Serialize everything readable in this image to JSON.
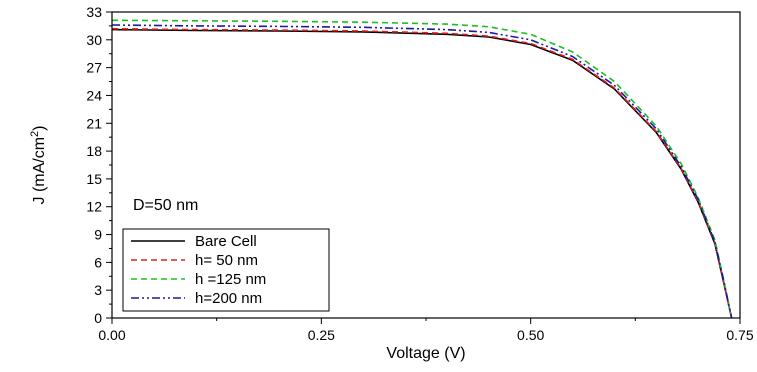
{
  "chart_data": {
    "type": "line",
    "title": "",
    "xlabel": "Voltage (V)",
    "ylabel_main": "J (mA/cm",
    "ylabel_sup": "2",
    "ylabel_close": ")",
    "xlim": [
      0.0,
      0.75
    ],
    "ylim": [
      0,
      33
    ],
    "x_ticks": [
      0.0,
      0.25,
      0.5,
      0.75
    ],
    "x_tick_labels": [
      "0.00",
      "0.25",
      "0.50",
      "0.75"
    ],
    "y_ticks": [
      0,
      3,
      6,
      9,
      12,
      15,
      18,
      21,
      24,
      27,
      30,
      33
    ],
    "y_tick_labels": [
      "0",
      "3",
      "6",
      "9",
      "12",
      "15",
      "18",
      "21",
      "24",
      "27",
      "30",
      "33"
    ],
    "grid": false,
    "legend_position": "bottom-left",
    "annotation": "D=50 nm",
    "series": [
      {
        "name": "Bare Cell",
        "color": "#000000",
        "dash": "solid",
        "x": [
          0.0,
          0.1,
          0.2,
          0.3,
          0.4,
          0.45,
          0.5,
          0.55,
          0.6,
          0.65,
          0.68,
          0.7,
          0.72,
          0.73,
          0.74
        ],
        "y": [
          31.1,
          31.0,
          30.95,
          30.85,
          30.6,
          30.3,
          29.5,
          27.8,
          24.7,
          20.0,
          16.0,
          12.5,
          8.0,
          4.0,
          0.0
        ]
      },
      {
        "name": "h= 50 nm",
        "color": "#e0201c",
        "dash": "dashed",
        "x": [
          0.0,
          0.1,
          0.2,
          0.3,
          0.4,
          0.45,
          0.5,
          0.55,
          0.6,
          0.65,
          0.68,
          0.7,
          0.72,
          0.73,
          0.74
        ],
        "y": [
          31.2,
          31.1,
          31.05,
          30.95,
          30.7,
          30.4,
          29.6,
          27.9,
          24.8,
          20.1,
          16.1,
          12.6,
          8.1,
          4.1,
          0.0
        ]
      },
      {
        "name": "h =125 nm",
        "color": "#1fbf1f",
        "dash": "dashed",
        "x": [
          0.0,
          0.1,
          0.2,
          0.3,
          0.4,
          0.45,
          0.5,
          0.55,
          0.6,
          0.65,
          0.68,
          0.7,
          0.72,
          0.73,
          0.74
        ],
        "y": [
          32.1,
          32.05,
          32.0,
          31.9,
          31.7,
          31.4,
          30.6,
          28.7,
          25.5,
          20.7,
          16.6,
          13.0,
          8.4,
          4.3,
          0.0
        ]
      },
      {
        "name": "h=200 nm",
        "color": "#1a1aa8",
        "dash": "dashdotdot",
        "x": [
          0.0,
          0.1,
          0.2,
          0.3,
          0.4,
          0.45,
          0.5,
          0.55,
          0.6,
          0.65,
          0.68,
          0.7,
          0.72,
          0.73,
          0.74
        ],
        "y": [
          31.6,
          31.5,
          31.45,
          31.35,
          31.1,
          30.8,
          30.0,
          28.2,
          25.1,
          20.4,
          16.3,
          12.8,
          8.2,
          4.2,
          0.0
        ]
      }
    ]
  }
}
